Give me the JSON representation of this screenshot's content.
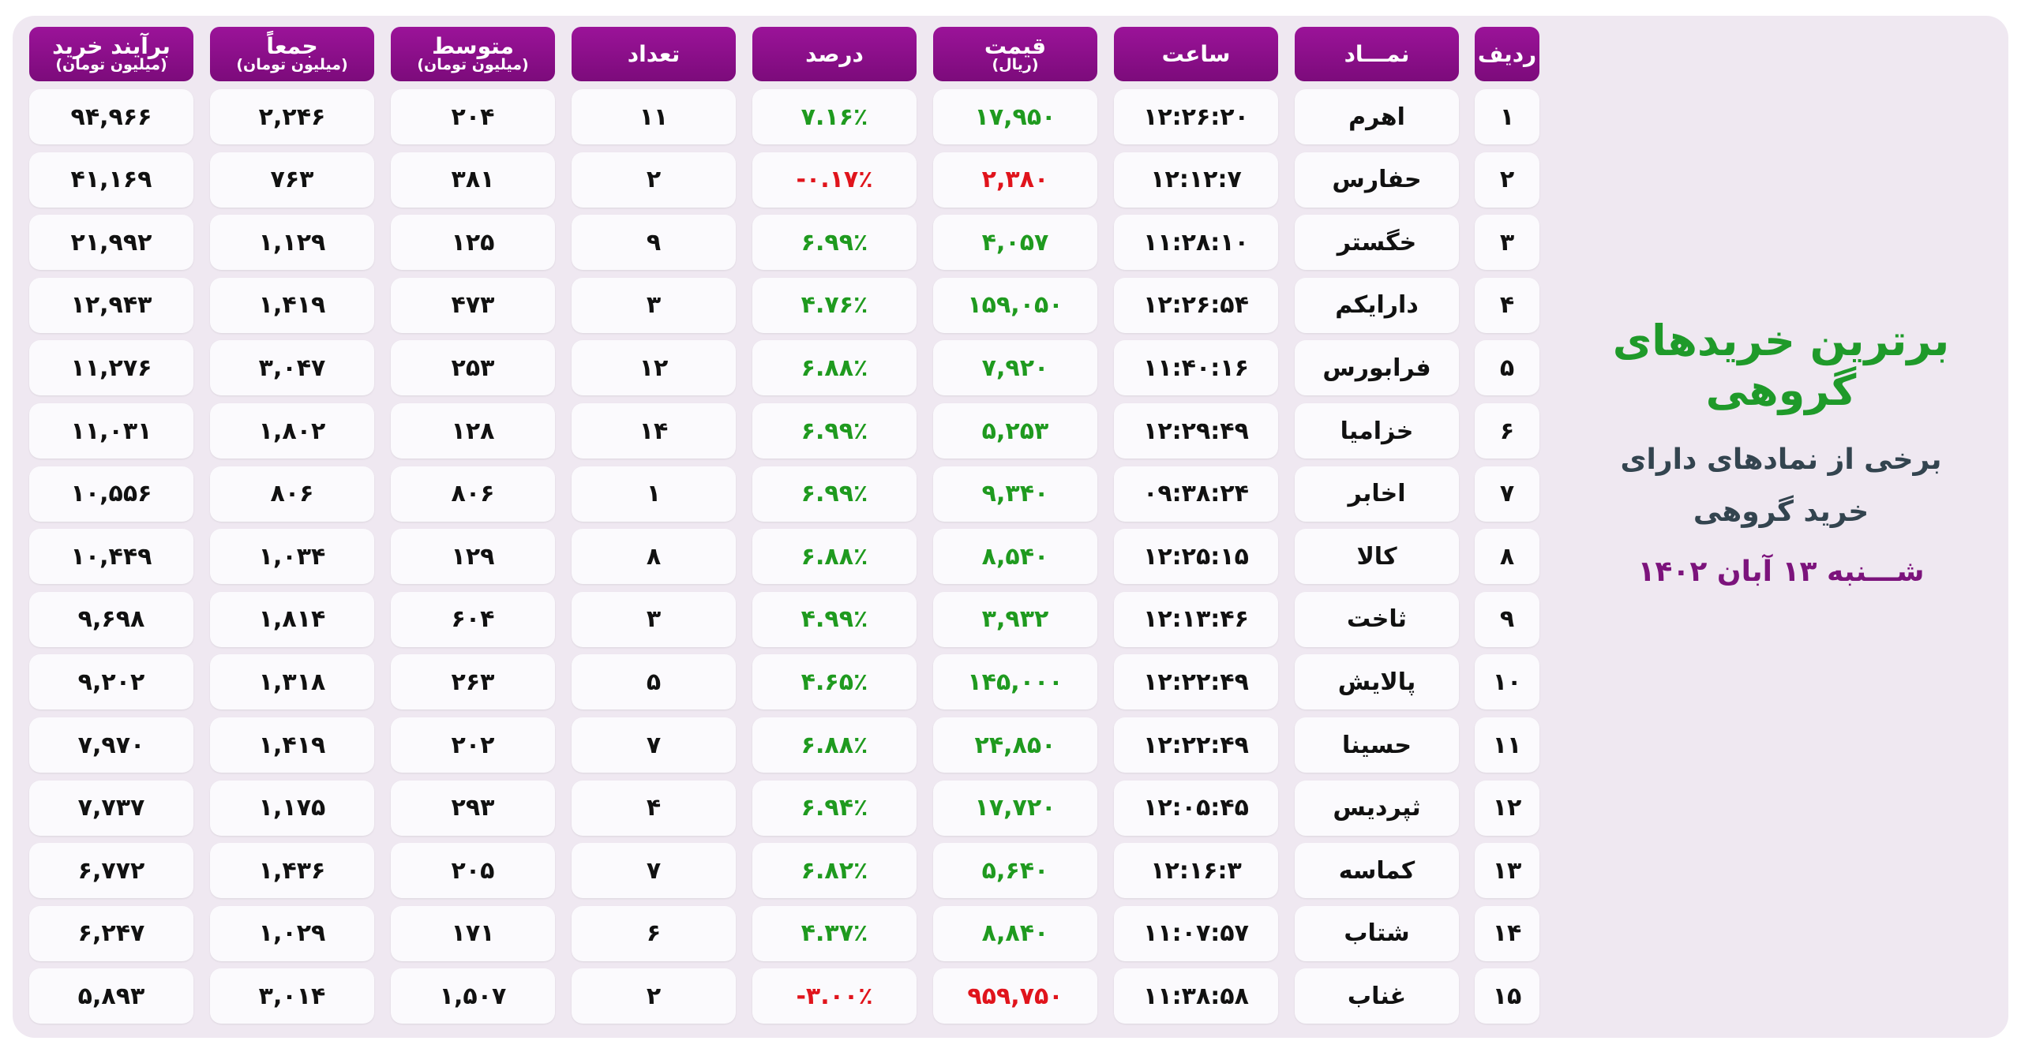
{
  "side": {
    "title": "برترین خریدهای گروهی",
    "subtitle_lines": [
      "برخی از نمادهای دارای",
      "خرید گروهی"
    ],
    "date": "شـــنبه ۱۳ آبان ۱۴۰۲"
  },
  "table": {
    "headers": [
      {
        "title": "ردیف"
      },
      {
        "title": "نمـــاد"
      },
      {
        "title": "ساعت"
      },
      {
        "title": "قیمت",
        "sub": "(ریال)"
      },
      {
        "title": "درصد"
      },
      {
        "title": "تعداد"
      },
      {
        "title": "متوسط",
        "sub": "(میلیون تومان)"
      },
      {
        "title": "جمعاً",
        "sub": "(میلیون تومان)"
      },
      {
        "title": "برآیند خرید",
        "sub": "(میلیون تومان)"
      }
    ],
    "rows": [
      [
        "۱",
        "اهرم",
        "۱۲:۲۶:۲۰",
        "۱۷,۹۵۰",
        "۷.۱۶٪",
        "۱۱",
        "۲۰۴",
        "۲,۲۴۶",
        "۹۴,۹۶۶"
      ],
      [
        "۲",
        "حفارس",
        "۱۲:۱۲:۷",
        "۲,۳۸۰",
        "-۰.۱۷٪",
        "۲",
        "۳۸۱",
        "۷۶۳",
        "۴۱,۱۶۹"
      ],
      [
        "۳",
        "خگستر",
        "۱۱:۲۸:۱۰",
        "۴,۰۵۷",
        "۶.۹۹٪",
        "۹",
        "۱۲۵",
        "۱,۱۲۹",
        "۲۱,۹۹۲"
      ],
      [
        "۴",
        "دارا‌یکم",
        "۱۲:۲۶:۵۴",
        "۱۵۹,۰۵۰",
        "۴.۷۶٪",
        "۳",
        "۴۷۳",
        "۱,۴۱۹",
        "۱۲,۹۴۳"
      ],
      [
        "۵",
        "فرابورس",
        "۱۱:۴۰:۱۶",
        "۷,۹۲۰",
        "۶.۸۸٪",
        "۱۲",
        "۲۵۳",
        "۳,۰۴۷",
        "۱۱,۲۷۶"
      ],
      [
        "۶",
        "خزامیا",
        "۱۲:۲۹:۴۹",
        "۵,۲۵۳",
        "۶.۹۹٪",
        "۱۴",
        "۱۲۸",
        "۱,۸۰۲",
        "۱۱,۰۳۱"
      ],
      [
        "۷",
        "اخابر",
        "۰۹:۳۸:۲۴",
        "۹,۳۴۰",
        "۶.۹۹٪",
        "۱",
        "۸۰۶",
        "۸۰۶",
        "۱۰,۵۵۶"
      ],
      [
        "۸",
        "کالا",
        "۱۲:۲۵:۱۵",
        "۸,۵۴۰",
        "۶.۸۸٪",
        "۸",
        "۱۲۹",
        "۱,۰۳۴",
        "۱۰,۴۴۹"
      ],
      [
        "۹",
        "ثاخت",
        "۱۲:۱۳:۴۶",
        "۳,۹۳۲",
        "۴.۹۹٪",
        "۳",
        "۶۰۴",
        "۱,۸۱۴",
        "۹,۶۹۸"
      ],
      [
        "۱۰",
        "پالایش",
        "۱۲:۲۲:۴۹",
        "۱۴۵,۰۰۰",
        "۴.۶۵٪",
        "۵",
        "۲۶۳",
        "۱,۳۱۸",
        "۹,۲۰۲"
      ],
      [
        "۱۱",
        "حسینا",
        "۱۲:۲۲:۴۹",
        "۲۴,۸۵۰",
        "۶.۸۸٪",
        "۷",
        "۲۰۲",
        "۱,۴۱۹",
        "۷,۹۷۰"
      ],
      [
        "۱۲",
        "ثپردیس",
        "۱۲:۰۵:۴۵",
        "۱۷,۷۲۰",
        "۶.۹۴٪",
        "۴",
        "۲۹۳",
        "۱,۱۷۵",
        "۷,۷۳۷"
      ],
      [
        "۱۳",
        "کماسه",
        "۱۲:۱۶:۳",
        "۵,۶۴۰",
        "۶.۸۲٪",
        "۷",
        "۲۰۵",
        "۱,۴۳۶",
        "۶,۷۷۲"
      ],
      [
        "۱۴",
        "شتاب",
        "۱۱:۰۷:۵۷",
        "۸,۸۴۰",
        "۴.۳۷٪",
        "۶",
        "۱۷۱",
        "۱,۰۲۹",
        "۶,۲۴۷"
      ],
      [
        "۱۵",
        "غناب",
        "۱۱:۳۸:۵۸",
        "۹۵۹,۷۵۰",
        "-۳.۰۰٪",
        "۲",
        "۱,۵۰۷",
        "۳,۰۱۴",
        "۵,۸۹۳"
      ]
    ],
    "change_colors": [
      "#1f9a1f",
      "#e0141c",
      "#1f9a1f",
      "#1f9a1f",
      "#1f9a1f",
      "#1f9a1f",
      "#1f9a1f",
      "#1f9a1f",
      "#1f9a1f",
      "#1f9a1f",
      "#1f9a1f",
      "#1f9a1f",
      "#1f9a1f",
      "#1f9a1f",
      "#e0141c"
    ]
  }
}
